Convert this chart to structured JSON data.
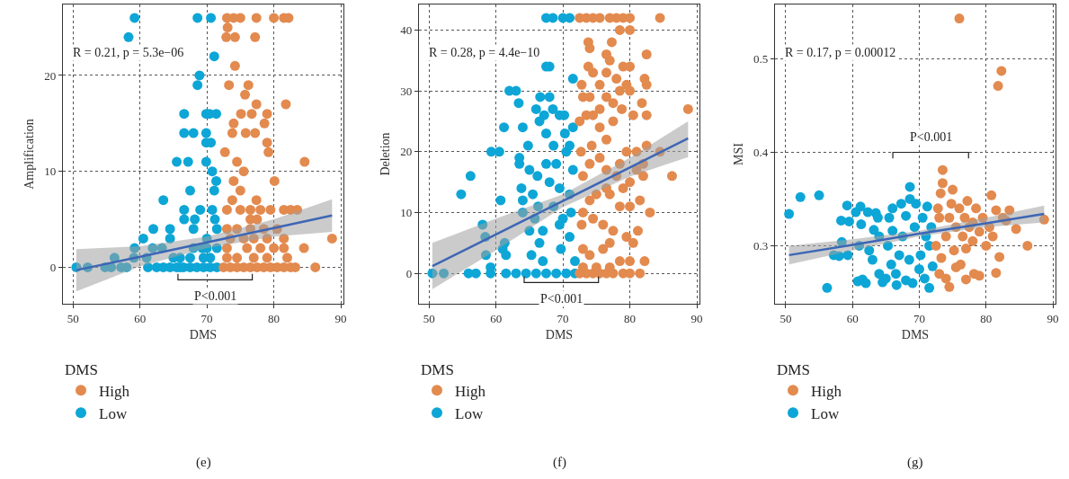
{
  "chart_data": [
    {
      "type": "scatter",
      "xlabel": "DMS",
      "ylabel": "Amplification",
      "legend_title": "DMS",
      "xlim": [
        48.5,
        90.4
      ],
      "ylim": [
        -3.8,
        27.4
      ],
      "xticks": [
        50,
        60,
        70,
        80,
        90
      ],
      "yticks": [
        0,
        10,
        20
      ],
      "grid": true,
      "legend": "bottom",
      "marker": "circle",
      "annotations": [
        "R = 0.21, p = 5.3e−06",
        "P<0.001",
        "(e)"
      ],
      "series": [
        {
          "name": "High",
          "color": "#e38a4f",
          "x": [
            72.5,
            73.5,
            74.5,
            75.5,
            76.5,
            77.5,
            78.5,
            79.5,
            80.5,
            81.5,
            82.5,
            83.2,
            86.2,
            73,
            74.5,
            77,
            79,
            82,
            73,
            76,
            78,
            80,
            81.5,
            84.5,
            73.5,
            75.5,
            77,
            79,
            81.5,
            88.7,
            73,
            74.5,
            76.5,
            78.5,
            80.5,
            76.5,
            77.5,
            73,
            75,
            76.5,
            78,
            79.5,
            81.5,
            82.5,
            83.5,
            73.8,
            77.4,
            75,
            74,
            80.1,
            75.5,
            74.5,
            84.6,
            72.7,
            79.2,
            79,
            73.8,
            75.8,
            77.2,
            74,
            78.6,
            75.1,
            76.7,
            79,
            77.4,
            81.8,
            75.7,
            73.3,
            76.2,
            74.2,
            72.9,
            74.2,
            77.2,
            73.1,
            73,
            74,
            75,
            77.4,
            80,
            81.5,
            82.2
          ],
          "values": [
            0,
            0,
            0,
            0,
            0,
            0,
            0,
            0,
            0,
            0,
            0,
            0,
            0,
            1,
            1,
            1,
            1,
            1,
            2,
            2,
            2,
            2,
            2,
            2,
            3,
            3,
            3,
            3,
            3,
            3,
            4,
            4,
            4,
            4,
            4,
            5,
            5,
            6,
            6,
            6,
            6,
            6,
            6,
            6,
            6,
            7,
            7,
            8,
            9,
            9,
            10,
            11,
            11,
            12,
            12,
            13,
            14,
            14,
            14,
            15,
            15,
            16,
            16,
            16,
            17,
            17,
            18,
            19,
            19,
            21,
            24,
            24,
            24,
            25,
            26,
            26,
            26,
            26,
            26,
            26,
            26
          ]
        },
        {
          "name": "Low",
          "color": "#0da6d6",
          "x": [
            50.5,
            52.2,
            54.8,
            55.7,
            56.2,
            57.2,
            58,
            59.1,
            59.2,
            60.5,
            61,
            61.2,
            61.9,
            62,
            63.3,
            63.5,
            64.5,
            64.5,
            65,
            65.5,
            66,
            66.6,
            66.6,
            66.6,
            66.6,
            67.2,
            67.5,
            68,
            68,
            68.2,
            68.6,
            68.9,
            68.6,
            69,
            69.3,
            69.9,
            69.9,
            69.9,
            69.9,
            70.4,
            70.6,
            70.6,
            70.8,
            70.8,
            71.1,
            71.1,
            71.4,
            71.4,
            71.2,
            71.5,
            59.2,
            58.3,
            62.5,
            63.5,
            64.5,
            65.5,
            66.5,
            67.5,
            68.5,
            69.5,
            70.5,
            71.5,
            66,
            67.5,
            69.5,
            70.5,
            70,
            68,
            71.5,
            70
          ],
          "values": [
            0,
            0,
            0,
            0,
            1,
            0,
            0,
            1,
            2,
            3,
            1,
            0,
            2,
            4,
            2,
            7,
            4,
            3,
            1,
            11,
            0,
            16,
            14,
            6,
            5,
            11,
            8,
            14,
            4,
            5,
            19,
            20,
            26,
            6,
            2,
            16,
            14,
            13,
            11,
            16,
            26,
            13,
            10,
            6,
            22,
            8,
            16,
            9,
            5,
            4,
            26,
            24,
            0,
            0,
            0,
            0,
            0,
            0,
            0,
            0,
            0,
            0,
            1,
            1,
            1,
            1,
            3,
            2,
            2,
            2
          ]
        },
        {
          "type": "line",
          "marker": "none",
          "color": "#3d66b5",
          "line_style": "solid",
          "x": [
            50.5,
            60,
            70,
            80,
            88.7
          ],
          "values": [
            -0.3,
            1.1,
            2.6,
            4.1,
            5.4
          ],
          "lower": [
            -2.5,
            0.1,
            2,
            3.2,
            3.7
          ],
          "upper": [
            1.9,
            2.2,
            3.2,
            5,
            7.1
          ]
        }
      ]
    },
    {
      "type": "scatter",
      "xlabel": "DMS",
      "ylabel": "Deletion",
      "legend_title": "DMS",
      "xlim": [
        48.5,
        90.4
      ],
      "ylim": [
        -5,
        44.2
      ],
      "xticks": [
        50,
        60,
        70,
        80,
        90
      ],
      "yticks": [
        0,
        10,
        20,
        30,
        40
      ],
      "grid": true,
      "legend": "bottom",
      "marker": "circle",
      "annotations": [
        "R = 0.28, p = 4.4e−10",
        "P<0.001",
        "(f)"
      ],
      "series": [
        {
          "name": "High",
          "color": "#e38a4f",
          "x": [
            72.5,
            73.5,
            74.5,
            75.5,
            76.5,
            77.5,
            79,
            80,
            81.5,
            73,
            75,
            77,
            78.5,
            80,
            82.2,
            73,
            74,
            76,
            77,
            79.5,
            80.5,
            81.2,
            72.8,
            74.5,
            76,
            77.5,
            78.5,
            80,
            81.5,
            83,
            73,
            74,
            75,
            76.5,
            78,
            79,
            80,
            81,
            82,
            82,
            84.5,
            86.3,
            73,
            74,
            75.5,
            76.5,
            77,
            78.5,
            79.5,
            81,
            82.5,
            72.7,
            74.3,
            75.5,
            76.5,
            72.5,
            73.5,
            74.5,
            75.5,
            77.5,
            78.8,
            80.5,
            81.8,
            82.5,
            73,
            74,
            76.5,
            77.5,
            78.5,
            79.5,
            80,
            82.5,
            72.8,
            73.8,
            74.5,
            75.5,
            76.5,
            78,
            79,
            80,
            82.2,
            76.5,
            77,
            77.3,
            73.8,
            74,
            82.5,
            78.5,
            80,
            88.7,
            72.5,
            73.5,
            74.5,
            75.5,
            77,
            78,
            79,
            80,
            84.5
          ],
          "values": [
            0,
            0,
            0,
            0,
            0,
            0,
            0,
            0,
            0,
            1,
            1,
            1,
            2,
            2,
            2,
            4,
            3,
            4,
            5,
            6,
            5,
            7,
            8,
            9,
            8,
            7,
            11,
            11,
            12,
            10,
            10,
            12,
            13,
            14,
            16,
            14,
            15,
            17,
            18,
            16,
            20,
            16,
            16,
            18,
            19,
            17,
            13,
            18,
            20,
            20,
            21,
            20,
            21,
            24,
            22,
            25,
            26,
            26,
            27,
            25,
            27,
            26,
            28,
            26,
            29,
            29,
            29,
            28,
            30,
            31,
            30,
            31,
            31,
            34,
            33,
            31,
            33,
            32,
            34,
            34,
            32,
            36,
            35,
            38,
            38,
            37,
            36,
            40,
            40,
            27,
            42,
            42,
            42,
            42,
            42,
            42,
            42,
            42,
            42
          ]
        },
        {
          "name": "Low",
          "color": "#0da6d6",
          "x": [
            50.5,
            52.2,
            55.9,
            57,
            59.2,
            61.5,
            63,
            64.5,
            66,
            67.5,
            69,
            70.5,
            71.8,
            54.8,
            56.2,
            58,
            58.4,
            58.5,
            59.2,
            59.3,
            60.5,
            60.7,
            61,
            61.3,
            61.5,
            61.2,
            62,
            63,
            63.4,
            63.5,
            63.5,
            63.8,
            64,
            64,
            64,
            64.8,
            65,
            65.3,
            65.5,
            65.8,
            66,
            66.5,
            66.6,
            66.2,
            66.5,
            67,
            67.2,
            67.5,
            67.5,
            68,
            68,
            68,
            67.5,
            68.6,
            68.5,
            68.6,
            69,
            69.5,
            69.5,
            69.5,
            69.7,
            70.2,
            70.3,
            70,
            70.5,
            71,
            71,
            71,
            71,
            71.5,
            71.5,
            71.5,
            71.2,
            67.5,
            68.5,
            71.8,
            65,
            70,
            67,
            66.3
          ],
          "values": [
            0,
            0,
            0,
            0,
            0,
            0,
            0,
            0,
            0,
            0,
            0,
            0,
            0,
            13,
            16,
            8,
            6,
            3,
            1,
            20,
            20,
            12,
            4,
            5,
            3,
            24,
            30,
            30,
            28,
            18,
            19,
            14,
            24,
            12,
            10,
            21,
            7,
            3,
            13,
            9,
            27,
            25,
            29,
            16,
            5,
            2,
            26,
            23,
            18,
            29,
            15,
            34,
            34,
            11,
            27,
            21,
            18,
            26,
            8,
            14,
            4,
            26,
            23,
            42,
            20,
            21,
            6,
            13,
            42,
            32,
            24,
            17,
            10,
            42,
            42,
            2,
            17,
            9,
            7,
            11
          ]
        },
        {
          "type": "line",
          "marker": "none",
          "color": "#3d66b5",
          "line_style": "solid",
          "x": [
            50.5,
            60,
            70,
            80,
            88.7
          ],
          "values": [
            1.2,
            6.4,
            11.9,
            17.4,
            22.2
          ],
          "lower": [
            -2.6,
            3.8,
            10.9,
            15.9,
            19.1
          ],
          "upper": [
            5,
            9,
            13,
            19,
            25
          ]
        }
      ]
    },
    {
      "type": "scatter",
      "xlabel": "DMS",
      "ylabel": "MSI",
      "legend_title": "DMS",
      "xlim": [
        48.4,
        90.4
      ],
      "ylim": [
        0.238,
        0.558
      ],
      "xticks": [
        50,
        60,
        70,
        80,
        90
      ],
      "yticks": [
        0.3,
        0.4,
        0.5
      ],
      "grid": true,
      "legend": "bottom",
      "marker": "circle",
      "annotations": [
        "R = 0.17, p = 0.00012",
        "P<0.001",
        "(g)"
      ],
      "series": [
        {
          "name": "High",
          "color": "#e38a4f",
          "x": [
            72.5,
            72.8,
            73,
            73.2,
            73,
            73.3,
            73.5,
            73.5,
            74,
            74,
            74.5,
            74.8,
            75,
            75.2,
            75.5,
            75.5,
            76,
            76.2,
            76.5,
            76.8,
            77,
            77,
            77.2,
            77.5,
            78,
            78.2,
            78.5,
            79,
            79,
            79.5,
            80,
            80.5,
            80.8,
            81,
            81.5,
            81.5,
            82,
            82.5,
            83,
            83.5,
            84.5,
            86.2,
            88.7,
            76,
            82.3,
            81.8,
            74.5,
            78
          ],
          "values": [
            0.3,
            0.34,
            0.33,
            0.356,
            0.27,
            0.287,
            0.367,
            0.381,
            0.31,
            0.265,
            0.256,
            0.345,
            0.36,
            0.295,
            0.32,
            0.277,
            0.34,
            0.28,
            0.31,
            0.33,
            0.264,
            0.297,
            0.348,
            0.32,
            0.305,
            0.27,
            0.34,
            0.268,
            0.315,
            0.33,
            0.3,
            0.32,
            0.354,
            0.31,
            0.271,
            0.338,
            0.288,
            0.33,
            0.327,
            0.338,
            0.318,
            0.3,
            0.328,
            0.543,
            0.487,
            0.471,
            0.33,
            0.325
          ]
        },
        {
          "name": "Low",
          "color": "#0da6d6",
          "x": [
            50.5,
            52.2,
            55,
            56.2,
            57.2,
            58,
            58.3,
            58.4,
            59.2,
            59.3,
            59.5,
            60.5,
            61,
            61.2,
            61.3,
            60.8,
            61.5,
            62,
            62.5,
            63,
            63.2,
            63.5,
            63.8,
            64,
            64,
            64.5,
            65,
            65.3,
            65.5,
            65.8,
            66,
            66.5,
            66.6,
            67,
            67.3,
            67.5,
            68,
            68,
            68.5,
            68.6,
            68.6,
            69,
            69.3,
            69.5,
            70,
            70.2,
            70.5,
            70.8,
            71,
            71.2,
            71.5,
            71.5,
            72,
            71.8,
            62.3,
            66
          ],
          "values": [
            0.334,
            0.352,
            0.354,
            0.255,
            0.29,
            0.289,
            0.327,
            0.304,
            0.343,
            0.29,
            0.326,
            0.336,
            0.3,
            0.342,
            0.323,
            0.262,
            0.264,
            0.26,
            0.295,
            0.285,
            0.317,
            0.335,
            0.33,
            0.31,
            0.27,
            0.261,
            0.265,
            0.3,
            0.33,
            0.28,
            0.34,
            0.27,
            0.258,
            0.29,
            0.345,
            0.31,
            0.263,
            0.332,
            0.285,
            0.363,
            0.35,
            0.26,
            0.32,
            0.345,
            0.275,
            0.29,
            0.33,
            0.265,
            0.31,
            0.342,
            0.255,
            0.3,
            0.278,
            0.32,
            0.336,
            0.316
          ]
        },
        {
          "type": "line",
          "marker": "none",
          "color": "#3d66b5",
          "line_style": "solid",
          "x": [
            50.5,
            60,
            70,
            80,
            88.7
          ],
          "values": [
            0.29,
            0.301,
            0.313,
            0.324,
            0.334
          ],
          "lower": [
            0.28,
            0.295,
            0.31,
            0.32,
            0.325
          ],
          "upper": [
            0.3,
            0.307,
            0.316,
            0.33,
            0.343
          ]
        }
      ]
    }
  ]
}
